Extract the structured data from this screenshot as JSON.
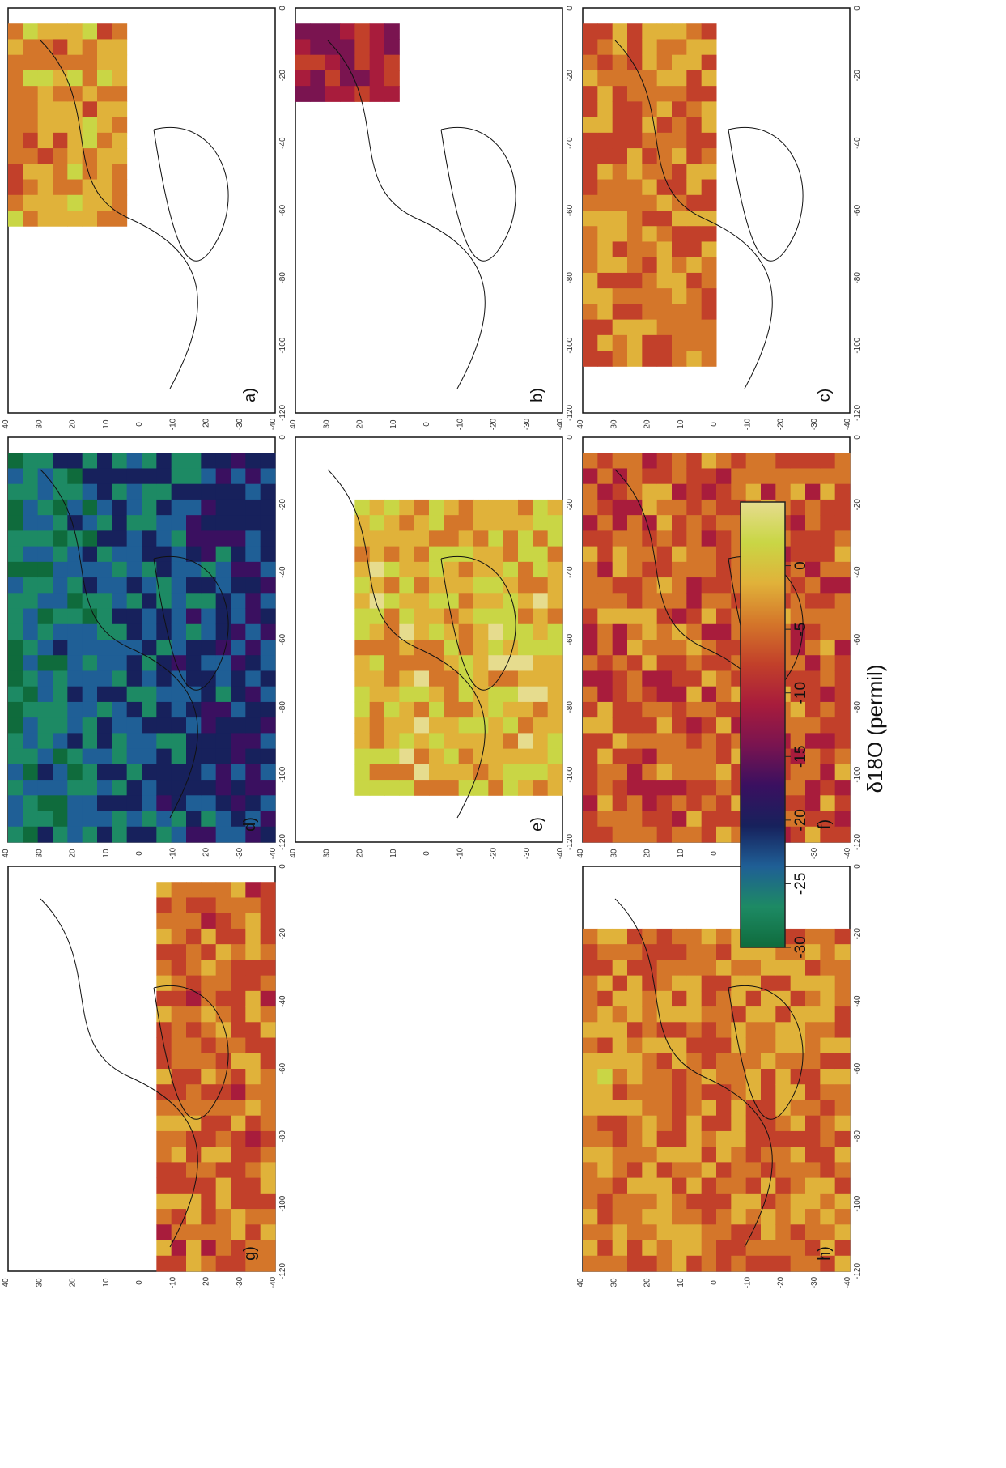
{
  "colorbar": {
    "title": "δ18O (permil)",
    "ticks": [
      "-30",
      "-25",
      "-20",
      "-15",
      "-10",
      "-5",
      "0"
    ],
    "scale": [
      "#0f6b3c",
      "#1d8a64",
      "#1f5f96",
      "#17215c",
      "#3a1060",
      "#7a1450",
      "#a81c3c",
      "#c2402a",
      "#d4762a",
      "#e0b23a",
      "#c9d645",
      "#e6dc8e"
    ]
  },
  "panels": [
    {
      "id": "a",
      "label": "a)",
      "pattern": "warm_hilat"
    },
    {
      "id": "b",
      "label": "b)",
      "pattern": "small_north"
    },
    {
      "id": "c",
      "label": "c)",
      "pattern": "warm_mid"
    },
    {
      "id": "d",
      "label": "d)",
      "pattern": "cold_west"
    },
    {
      "id": "e",
      "label": "e)",
      "pattern": "warm_center"
    },
    {
      "id": "f",
      "label": "f)",
      "pattern": "warm_full"
    },
    {
      "id": "g",
      "label": "g)",
      "pattern": "warm_southwest"
    },
    {
      "id": "h",
      "label": "h)",
      "pattern": "warm_east"
    }
  ],
  "axes": {
    "lat_ticks": [
      "40",
      "30",
      "20",
      "10",
      "0",
      "-10",
      "-20",
      "-30",
      "-40"
    ],
    "lon_ticks": [
      "-120",
      "-100",
      "-80",
      "-60",
      "-40",
      "-20",
      "0"
    ]
  }
}
